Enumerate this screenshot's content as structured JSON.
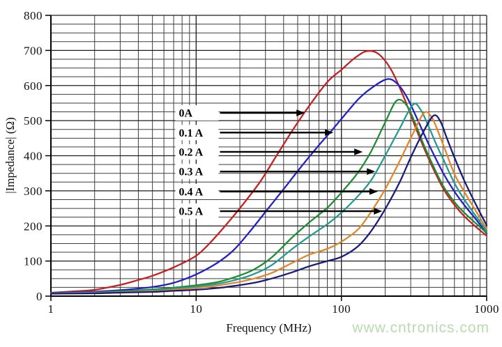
{
  "watermark": {
    "text": "www.cntronics.com",
    "color": "#b7dcae"
  },
  "chart_data": {
    "type": "line",
    "title": "",
    "xlabel": "Frequency (MHz)",
    "ylabel": "|Impedance| (Ω)",
    "x_scale": "log",
    "xlim": [
      1,
      1000
    ],
    "ylim": [
      0,
      800
    ],
    "x_ticks": [
      1,
      10,
      100,
      1000
    ],
    "y_ticks": [
      0,
      100,
      200,
      300,
      400,
      500,
      600,
      700,
      800
    ],
    "y_minor_step": 25,
    "grid": "both",
    "grid_minor_color": "#3d3d3d",
    "grid_major_color": "#1c1c1c",
    "legend_position": "inside annotations with arrows",
    "series": [
      {
        "name": "0A",
        "color": "#c42222",
        "peak_mhz": 150,
        "peak_ohm": 698,
        "points": [
          [
            1,
            10
          ],
          [
            1.5,
            14
          ],
          [
            2,
            18
          ],
          [
            3,
            32
          ],
          [
            4,
            46
          ],
          [
            5,
            58
          ],
          [
            7,
            82
          ],
          [
            10,
            115
          ],
          [
            13,
            160
          ],
          [
            17,
            215
          ],
          [
            22,
            272
          ],
          [
            28,
            330
          ],
          [
            36,
            402
          ],
          [
            46,
            472
          ],
          [
            60,
            542
          ],
          [
            80,
            610
          ],
          [
            100,
            645
          ],
          [
            125,
            680
          ],
          [
            150,
            698
          ],
          [
            180,
            690
          ],
          [
            220,
            645
          ],
          [
            270,
            565
          ],
          [
            330,
            472
          ],
          [
            400,
            390
          ],
          [
            500,
            308
          ],
          [
            600,
            260
          ],
          [
            700,
            228
          ],
          [
            850,
            196
          ],
          [
            1000,
            172
          ]
        ]
      },
      {
        "name": "0.1 A",
        "color": "#2222c4",
        "peak_mhz": 205,
        "peak_ohm": 618,
        "points": [
          [
            1,
            9
          ],
          [
            2,
            13
          ],
          [
            3,
            17
          ],
          [
            5,
            26
          ],
          [
            7,
            38
          ],
          [
            10,
            62
          ],
          [
            14,
            95
          ],
          [
            18,
            130
          ],
          [
            23,
            180
          ],
          [
            30,
            240
          ],
          [
            40,
            305
          ],
          [
            52,
            365
          ],
          [
            70,
            430
          ],
          [
            85,
            470
          ],
          [
            100,
            505
          ],
          [
            130,
            560
          ],
          [
            160,
            592
          ],
          [
            205,
            618
          ],
          [
            240,
            607
          ],
          [
            280,
            570
          ],
          [
            330,
            508
          ],
          [
            400,
            432
          ],
          [
            500,
            352
          ],
          [
            600,
            298
          ],
          [
            700,
            260
          ],
          [
            850,
            217
          ],
          [
            1000,
            178
          ]
        ]
      },
      {
        "name": "0.2 A",
        "color": "#1e8c32",
        "peak_mhz": 240,
        "peak_ohm": 557,
        "points": [
          [
            1,
            8
          ],
          [
            2,
            11
          ],
          [
            3,
            14
          ],
          [
            5,
            19
          ],
          [
            7,
            24
          ],
          [
            10,
            31
          ],
          [
            14,
            40
          ],
          [
            19,
            56
          ],
          [
            25,
            76
          ],
          [
            33,
            110
          ],
          [
            46,
            168
          ],
          [
            60,
            210
          ],
          [
            80,
            252
          ],
          [
            100,
            295
          ],
          [
            130,
            352
          ],
          [
            160,
            412
          ],
          [
            200,
            495
          ],
          [
            240,
            557
          ],
          [
            280,
            545
          ],
          [
            320,
            495
          ],
          [
            370,
            430
          ],
          [
            430,
            370
          ],
          [
            500,
            315
          ],
          [
            600,
            268
          ],
          [
            700,
            238
          ],
          [
            850,
            206
          ],
          [
            1000,
            180
          ]
        ]
      },
      {
        "name": "0.3 A",
        "color": "#279993",
        "peak_mhz": 310,
        "peak_ohm": 545,
        "points": [
          [
            1,
            8
          ],
          [
            2,
            10
          ],
          [
            3,
            12
          ],
          [
            5,
            16
          ],
          [
            7,
            21
          ],
          [
            10,
            27
          ],
          [
            14,
            35
          ],
          [
            19,
            47
          ],
          [
            25,
            63
          ],
          [
            33,
            88
          ],
          [
            46,
            135
          ],
          [
            60,
            170
          ],
          [
            80,
            205
          ],
          [
            100,
            238
          ],
          [
            130,
            285
          ],
          [
            160,
            330
          ],
          [
            200,
            400
          ],
          [
            250,
            475
          ],
          [
            310,
            545
          ],
          [
            350,
            532
          ],
          [
            400,
            482
          ],
          [
            450,
            432
          ],
          [
            500,
            392
          ],
          [
            600,
            322
          ],
          [
            700,
            276
          ],
          [
            850,
            226
          ],
          [
            1000,
            186
          ]
        ]
      },
      {
        "name": "0.4 A",
        "color": "#e2862a",
        "peak_mhz": 370,
        "peak_ohm": 522,
        "points": [
          [
            1,
            7
          ],
          [
            2,
            9
          ],
          [
            3,
            11
          ],
          [
            5,
            14
          ],
          [
            7,
            18
          ],
          [
            10,
            23
          ],
          [
            14,
            30
          ],
          [
            19,
            39
          ],
          [
            25,
            50
          ],
          [
            33,
            66
          ],
          [
            46,
            95
          ],
          [
            60,
            118
          ],
          [
            80,
            135
          ],
          [
            100,
            155
          ],
          [
            130,
            190
          ],
          [
            160,
            240
          ],
          [
            200,
            305
          ],
          [
            250,
            382
          ],
          [
            300,
            450
          ],
          [
            370,
            522
          ],
          [
            420,
            508
          ],
          [
            470,
            462
          ],
          [
            520,
            415
          ],
          [
            600,
            348
          ],
          [
            700,
            298
          ],
          [
            850,
            240
          ],
          [
            1000,
            192
          ]
        ]
      },
      {
        "name": "0.5 A",
        "color": "#1b1b78",
        "peak_mhz": 430,
        "peak_ohm": 514,
        "points": [
          [
            1,
            7
          ],
          [
            2,
            8
          ],
          [
            3,
            10
          ],
          [
            5,
            12
          ],
          [
            7,
            15
          ],
          [
            10,
            18
          ],
          [
            14,
            23
          ],
          [
            19,
            30
          ],
          [
            25,
            38
          ],
          [
            33,
            50
          ],
          [
            46,
            68
          ],
          [
            60,
            85
          ],
          [
            80,
            100
          ],
          [
            100,
            112
          ],
          [
            130,
            142
          ],
          [
            160,
            185
          ],
          [
            200,
            248
          ],
          [
            250,
            322
          ],
          [
            300,
            395
          ],
          [
            360,
            462
          ],
          [
            430,
            514
          ],
          [
            480,
            498
          ],
          [
            530,
            452
          ],
          [
            600,
            395
          ],
          [
            700,
            330
          ],
          [
            850,
            258
          ],
          [
            1000,
            202
          ]
        ]
      }
    ],
    "annotations": [
      {
        "label": "0A",
        "y_ohm": 522,
        "arrow_end_mhz": 56
      },
      {
        "label": "0.1 A",
        "y_ohm": 466,
        "arrow_end_mhz": 88
      },
      {
        "label": "0.2 A",
        "y_ohm": 411,
        "arrow_end_mhz": 140
      },
      {
        "label": "0.3 A",
        "y_ohm": 355,
        "arrow_end_mhz": 171
      },
      {
        "label": "0.4 A",
        "y_ohm": 298,
        "arrow_end_mhz": 178
      },
      {
        "label": "0.5 A",
        "y_ohm": 242,
        "arrow_end_mhz": 191
      }
    ]
  }
}
